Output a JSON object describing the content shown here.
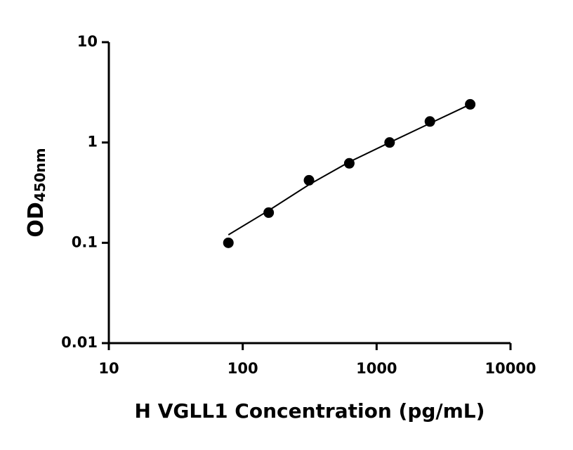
{
  "chart_data": {
    "type": "scatter",
    "xlabel": "H VGLL1 Concentration (pg/mL)",
    "ylabel": "OD",
    "ylabel_subscript": "450nm",
    "xscale": "log",
    "yscale": "log",
    "xlim": [
      10,
      10000
    ],
    "xticks": [
      10,
      100,
      1000,
      10000
    ],
    "ylim": [
      0.01,
      10
    ],
    "yticks": [
      0.01,
      0.1,
      1,
      10
    ],
    "series": [
      {
        "type": "scatter",
        "color": "#000000",
        "x": [
          78.125,
          156.25,
          312.5,
          625,
          1250,
          2500,
          5000
        ],
        "values": [
          0.1,
          0.2,
          0.42,
          0.62,
          1.0,
          1.62,
          2.4
        ]
      },
      {
        "type": "line",
        "color": "#000000",
        "x": [
          78.125,
          156.25,
          312.5,
          625,
          1250,
          2500,
          5000
        ],
        "values": [
          0.12,
          0.21,
          0.38,
          0.64,
          1.0,
          1.55,
          2.4
        ]
      }
    ]
  }
}
